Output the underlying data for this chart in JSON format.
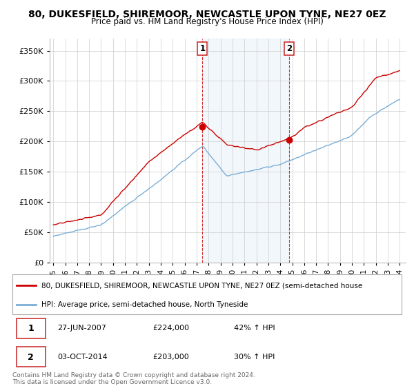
{
  "title": "80, DUKESFIELD, SHIREMOOR, NEWCASTLE UPON TYNE, NE27 0EZ",
  "subtitle": "Price paid vs. HM Land Registry's House Price Index (HPI)",
  "title_fontsize": 10,
  "subtitle_fontsize": 8.5,
  "ylabel_ticks": [
    "£0",
    "£50K",
    "£100K",
    "£150K",
    "£200K",
    "£250K",
    "£300K",
    "£350K"
  ],
  "ytick_vals": [
    0,
    50000,
    100000,
    150000,
    200000,
    250000,
    300000,
    350000
  ],
  "ylim": [
    0,
    370000
  ],
  "xlim_start": 1994.7,
  "xlim_end": 2024.5,
  "xtick_years": [
    1995,
    1996,
    1997,
    1998,
    1999,
    2000,
    2001,
    2002,
    2003,
    2004,
    2005,
    2006,
    2007,
    2008,
    2009,
    2010,
    2011,
    2012,
    2013,
    2014,
    2015,
    2016,
    2017,
    2018,
    2019,
    2020,
    2021,
    2022,
    2023,
    2024
  ],
  "sale1_x": 2007.49,
  "sale1_y": 224000,
  "sale1_label": "1",
  "sale2_x": 2014.75,
  "sale2_y": 203000,
  "sale2_label": "2",
  "vline1_x": 2007.49,
  "vline2_x": 2014.75,
  "property_color": "#cc0000",
  "hpi_color": "#7aaed6",
  "background_color": "#ffffff",
  "plot_bg_color": "#ffffff",
  "grid_color": "#cccccc",
  "legend_label_property": "80, DUKESFIELD, SHIREMOOR, NEWCASTLE UPON TYNE, NE27 0EZ (semi-detached house",
  "legend_label_hpi": "HPI: Average price, semi-detached house, North Tyneside",
  "table_row1": [
    "1",
    "27-JUN-2007",
    "£224,000",
    "42% ↑ HPI"
  ],
  "table_row2": [
    "2",
    "03-OCT-2014",
    "£203,000",
    "30% ↑ HPI"
  ],
  "footer_text": "Contains HM Land Registry data © Crown copyright and database right 2024.\nThis data is licensed under the Open Government Licence v3.0.",
  "marker_size": 6,
  "linewidth_property": 1.0,
  "linewidth_hpi": 1.0
}
